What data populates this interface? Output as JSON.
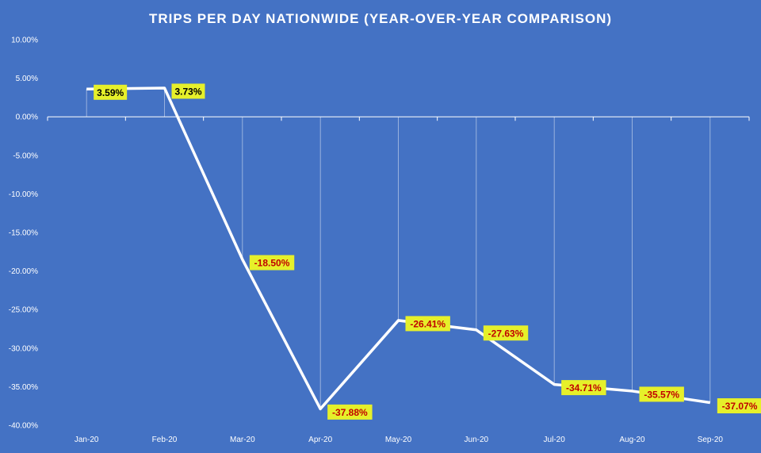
{
  "chart_data": {
    "type": "line",
    "title": "TRIPS PER DAY NATIONWIDE  (YEAR-OVER-YEAR  COMPARISON)",
    "xlabel": "",
    "ylabel": "",
    "categories": [
      "Jan-20",
      "Feb-20",
      "Mar-20",
      "Apr-20",
      "May-20",
      "Jun-20",
      "Jul-20",
      "Aug-20",
      "Sep-20"
    ],
    "series": [
      {
        "values": [
          3.59,
          3.73,
          -18.5,
          -37.88,
          -26.41,
          -27.63,
          -34.71,
          -35.57,
          -37.07
        ],
        "labels": [
          "3.59%",
          "3.73%",
          "-18.50%",
          "-37.88%",
          "-26.41%",
          "-27.63%",
          "-34.71%",
          "-35.57%",
          "-37.07%"
        ]
      }
    ],
    "ylim": [
      -40,
      10
    ],
    "yticks": [
      10,
      5,
      0,
      -5,
      -10,
      -15,
      -20,
      -25,
      -30,
      -35,
      -40
    ],
    "ytick_labels": [
      "10.00%",
      "5.00%",
      "0.00%",
      "-5.00%",
      "-10.00%",
      "-15.00%",
      "-20.00%",
      "-25.00%",
      "-30.00%",
      "-35.00%",
      "-40.00%"
    ],
    "grid": false,
    "drop_lines": true,
    "legend": "none",
    "colors": {
      "background": "#4472c4",
      "line": "#ffffff",
      "label_fill": "#e6f02a",
      "positive_label_text": "#000000",
      "negative_label_text": "#c00000",
      "axis_text": "#ffffff"
    }
  }
}
